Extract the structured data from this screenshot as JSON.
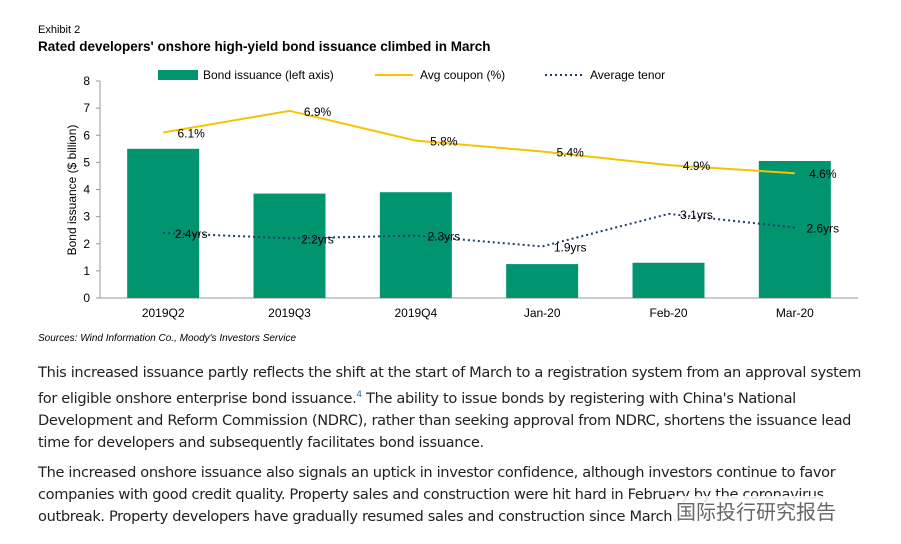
{
  "header": {
    "exhibit": "Exhibit 2",
    "title": "Rated developers' onshore high-yield bond issuance climbed in March"
  },
  "chart_data": {
    "type": "bar",
    "y_label": "Bond issuance ($ billion)",
    "categories": [
      "2019Q2",
      "2019Q3",
      "2019Q4",
      "Jan-20",
      "Feb-20",
      "Mar-20"
    ],
    "series": [
      {
        "name": "Bond issuance (left axis)",
        "type": "bar",
        "color": "#00956f",
        "values": [
          5.5,
          3.85,
          3.9,
          1.25,
          1.3,
          5.05
        ]
      },
      {
        "name": "Avg coupon (%)",
        "type": "line",
        "color": "#f5c400",
        "dashed": false,
        "values": [
          6.1,
          6.9,
          5.8,
          5.4,
          4.9,
          4.6
        ],
        "value_labels": [
          "6.1%",
          "6.9%",
          "5.8%",
          "5.4%",
          "4.9%",
          "4.6%"
        ]
      },
      {
        "name": "Average tenor",
        "type": "line",
        "color": "#1f3a6e",
        "dashed": true,
        "values": [
          2.4,
          2.2,
          2.3,
          1.9,
          3.1,
          2.6
        ],
        "value_labels": [
          "2.4yrs",
          "2.2yrs",
          "2.3yrs",
          "1.9yrs",
          "3.1yrs",
          "2.6yrs"
        ]
      }
    ],
    "ylim": [
      0,
      8
    ],
    "yticks": [
      0,
      1,
      2,
      3,
      4,
      5,
      6,
      7,
      8
    ],
    "grid": false
  },
  "source": "Sources: Wind Information Co., Moody's Investors Service",
  "paragraphs": [
    {
      "before": "This increased issuance partly reflects the shift at the start of March to a registration system from an approval system for eligible onshore enterprise bond issuance.",
      "footnote": "4",
      "after": " The ability to issue bonds by registering with China's National Development and Reform Commission (NDRC), rather than seeking approval from NDRC, shortens the issuance lead time for developers and subsequently facilitates bond issuance."
    },
    {
      "before": "The increased onshore issuance also signals an uptick in investor confidence, although investors continue to favor companies with good credit quality. Property sales and construction were hit hard in February by the coronavirus outbreak. Property developers have gradually resumed sales and construction since March."
    }
  ],
  "watermark": "国际投行研究报告"
}
